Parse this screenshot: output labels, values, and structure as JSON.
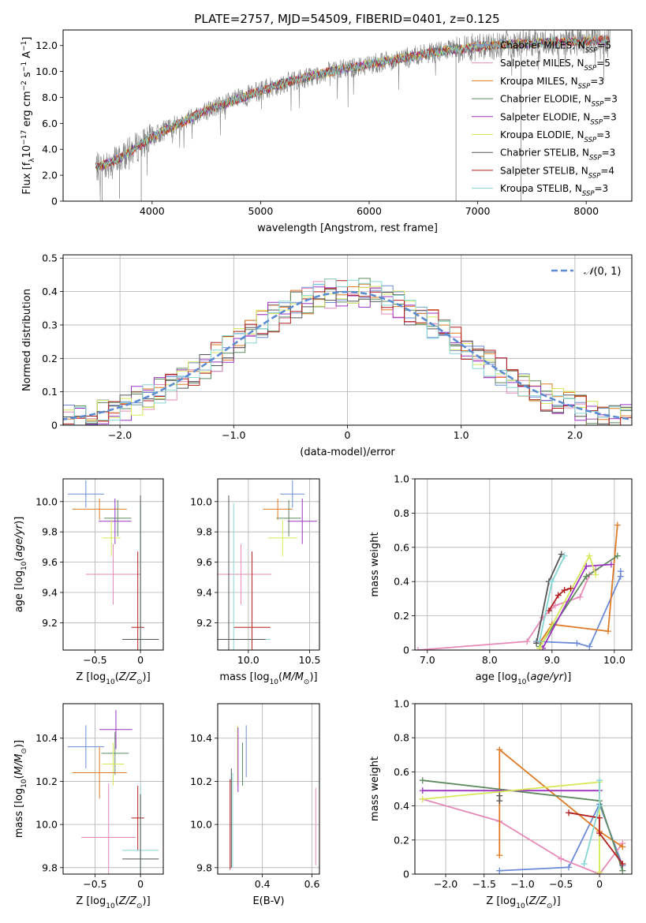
{
  "figure_title": "PLATE=2757, MJD=54509, FIBERID=0401, z=0.125",
  "model_colors": {
    "Chabrier MILES": "#6b8bd8",
    "Salpeter MILES": "#e78ab8",
    "Kroupa MILES": "#e07b27",
    "Chabrier ELODIE": "#5e8a5e",
    "Salpeter ELODIE": "#9b34c1",
    "Kroupa ELODIE": "#d8e85a",
    "Chabrier STELIB": "#555555",
    "Salpeter STELIB": "#b21f1f",
    "Kroupa STELIB": "#86d6d4"
  },
  "chart_data": [
    {
      "id": "spectrum",
      "type": "line",
      "title": "PLATE=2757, MJD=54509, FIBERID=0401, z=0.125",
      "xlabel": "wavelength [Angstrom, rest frame]",
      "ylabel": "Flux [f_λ 10^-17 erg cm^-2 s^-1 A^-1]",
      "xlim": [
        3180,
        8420
      ],
      "ylim": [
        0,
        13.2
      ],
      "xticks": [
        4000,
        5000,
        6000,
        7000,
        8000
      ],
      "yticks": [
        0,
        2,
        4,
        6,
        8,
        10,
        12
      ],
      "grid": false,
      "legend_position": "top-right",
      "data_series": {
        "name": "data",
        "color": "#808080",
        "x": [
          3500,
          3700,
          3900,
          4100,
          4300,
          4500,
          4700,
          4900,
          5100,
          5300,
          5500,
          5700,
          5900,
          6100,
          6300,
          6500,
          6700,
          6900,
          7100,
          7300,
          7500,
          7700,
          7900,
          8100,
          8200
        ],
        "y": [
          2.6,
          3.3,
          4.4,
          5.4,
          6.2,
          7.0,
          7.6,
          8.2,
          8.8,
          9.3,
          9.7,
          10.1,
          10.4,
          10.7,
          11.0,
          11.3,
          11.6,
          11.8,
          12.0,
          12.1,
          12.2,
          12.3,
          12.3,
          12.4,
          12.4
        ],
        "drops": [
          [
            3540,
            0
          ],
          [
            3700,
            0.2
          ],
          [
            3900,
            0
          ],
          [
            6800,
            0
          ],
          [
            7400,
            0
          ]
        ]
      },
      "series": [
        {
          "name": "Chabrier MILES, N_SSP=5",
          "label_main": "Chabrier MILES, N",
          "label_sub": "SSP",
          "label_tail": "=5"
        },
        {
          "name": "Salpeter MILES, N_SSP=5",
          "label_main": "Salpeter MILES, N",
          "label_sub": "SSP",
          "label_tail": "=5"
        },
        {
          "name": "Kroupa MILES, N_SSP=3",
          "label_main": "Kroupa MILES, N",
          "label_sub": "SSP",
          "label_tail": "=3"
        },
        {
          "name": "Chabrier ELODIE, N_SSP=3",
          "label_main": "Chabrier ELODIE, N",
          "label_sub": "SSP",
          "label_tail": "=3"
        },
        {
          "name": "Salpeter ELODIE, N_SSP=3",
          "label_main": "Salpeter ELODIE, N",
          "label_sub": "SSP",
          "label_tail": "=3"
        },
        {
          "name": "Kroupa ELODIE, N_SSP=3",
          "label_main": "Kroupa ELODIE, N",
          "label_sub": "SSP",
          "label_tail": "=3"
        },
        {
          "name": "Chabrier STELIB, N_SSP=3",
          "label_main": "Chabrier STELIB, N",
          "label_sub": "SSP",
          "label_tail": "=3"
        },
        {
          "name": "Salpeter STELIB, N_SSP=4",
          "label_main": "Salpeter STELIB, N",
          "label_sub": "SSP",
          "label_tail": "=4"
        },
        {
          "name": "Kroupa STELIB, N_SSP=3",
          "label_main": "Kroupa STELIB, N",
          "label_sub": "SSP",
          "label_tail": "=3"
        }
      ]
    },
    {
      "id": "residuals",
      "type": "histogram",
      "xlabel": "(data-model)/error",
      "ylabel": "Normed distribution",
      "xlim": [
        -2.5,
        2.5
      ],
      "ylim": [
        0,
        0.51
      ],
      "xticks": [
        -2,
        -1,
        0,
        1,
        2
      ],
      "yticks": [
        0.0,
        0.1,
        0.2,
        0.3,
        0.4,
        0.5
      ],
      "grid": true,
      "legend": "N(0,1)",
      "legend_position": "top-right",
      "bin_width": 0.1,
      "reference_curve": {
        "name": "N(0,1)",
        "mean": 0,
        "sigma": 1,
        "style": "dashed",
        "color": "#5b8bd0"
      }
    },
    {
      "id": "age-vs-Z",
      "type": "errorbar",
      "xlabel": "Z [log10(Z/Z☉)]",
      "ylabel": "age [log10(age/yr)]",
      "xlim": [
        -0.85,
        0.25
      ],
      "ylim": [
        9.02,
        10.15
      ],
      "xticks": [
        -0.5,
        0.0
      ],
      "yticks": [
        9.2,
        9.4,
        9.6,
        9.8,
        10.0
      ],
      "grid": true,
      "points": [
        {
          "model": "Chabrier MILES",
          "x": -0.6,
          "xerr": 0.2,
          "y": 10.05,
          "yerr": 0.09
        },
        {
          "model": "Kroupa MILES",
          "x": -0.45,
          "xerr": 0.3,
          "y": 9.95,
          "yerr": 0.07
        },
        {
          "model": "Chabrier ELODIE",
          "x": -0.25,
          "xerr": 0.15,
          "y": 9.89,
          "yerr": 0.12
        },
        {
          "model": "Salpeter ELODIE",
          "x": -0.28,
          "xerr": 0.18,
          "y": 9.87,
          "yerr": 0.15
        },
        {
          "model": "Kroupa ELODIE",
          "x": -0.32,
          "xerr": 0.1,
          "y": 9.76,
          "yerr": 0.12
        },
        {
          "model": "Salpeter MILES",
          "x": -0.3,
          "xerr": 0.3,
          "y": 9.52,
          "yerr": 0.2
        },
        {
          "model": "Salpeter STELIB",
          "x": -0.03,
          "xerr": 0.07,
          "y": 9.17,
          "yerr": 0.5
        },
        {
          "model": "Kroupa STELIB",
          "x": 0.0,
          "xerr": 0.2,
          "y": 9.09,
          "yerr": 0.9
        },
        {
          "model": "Chabrier STELIB",
          "x": 0.0,
          "xerr": 0.2,
          "y": 9.09,
          "yerr": 0.95
        }
      ]
    },
    {
      "id": "age-vs-mass",
      "type": "errorbar",
      "xlabel": "mass [log10(M/M☉)]",
      "ylabel": "",
      "xlim": [
        9.75,
        10.58
      ],
      "ylim": [
        9.02,
        10.15
      ],
      "xticks": [
        10.0,
        10.5
      ],
      "yticks": [
        9.2,
        9.4,
        9.6,
        9.8,
        10.0
      ],
      "grid": true,
      "points": [
        {
          "model": "Chabrier MILES",
          "x": 10.36,
          "xerr": 0.1,
          "y": 10.05,
          "yerr": 0.09
        },
        {
          "model": "Kroupa MILES",
          "x": 10.24,
          "xerr": 0.12,
          "y": 9.95,
          "yerr": 0.07
        },
        {
          "model": "Chabrier ELODIE",
          "x": 10.33,
          "xerr": 0.1,
          "y": 9.89,
          "yerr": 0.12
        },
        {
          "model": "Salpeter ELODIE",
          "x": 10.44,
          "xerr": 0.12,
          "y": 9.87,
          "yerr": 0.15
        },
        {
          "model": "Kroupa ELODIE",
          "x": 10.28,
          "xerr": 0.12,
          "y": 9.76,
          "yerr": 0.12
        },
        {
          "model": "Salpeter MILES",
          "x": 9.94,
          "xerr": 0.25,
          "y": 9.52,
          "yerr": 0.2
        },
        {
          "model": "Salpeter STELIB",
          "x": 10.03,
          "xerr": 0.15,
          "y": 9.17,
          "yerr": 0.5
        },
        {
          "model": "Kroupa STELIB",
          "x": 9.88,
          "xerr": 0.3,
          "y": 9.09,
          "yerr": 0.9
        },
        {
          "model": "Chabrier STELIB",
          "x": 9.84,
          "xerr": 0.3,
          "y": 9.09,
          "yerr": 0.95
        }
      ]
    },
    {
      "id": "mass-weight-vs-age",
      "type": "line",
      "xlabel": "age [log10(age/yr)]",
      "ylabel": "mass weight",
      "xlim": [
        6.8,
        10.28
      ],
      "ylim": [
        0,
        1.0
      ],
      "xticks": [
        7,
        8,
        9,
        10
      ],
      "yticks": [
        0.0,
        0.2,
        0.4,
        0.6,
        0.8,
        1.0
      ],
      "grid": true,
      "series": [
        {
          "model": "Salpeter MILES",
          "x": [
            6.85,
            8.6,
            8.85,
            9.05,
            9.45,
            9.6,
            9.7
          ],
          "y": [
            0.0,
            0.05,
            0.19,
            0.26,
            0.31,
            0.44,
            0.47
          ]
        },
        {
          "model": "Chabrier MILES",
          "x": [
            8.75,
            9.4,
            9.6,
            10.1,
            10.1
          ],
          "y": [
            0.05,
            0.04,
            0.02,
            0.43,
            0.46
          ]
        },
        {
          "model": "Kroupa MILES",
          "x": [
            8.8,
            9.0,
            9.9,
            10.05
          ],
          "y": [
            0.04,
            0.15,
            0.11,
            0.73
          ]
        },
        {
          "model": "Chabrier ELODIE",
          "x": [
            8.8,
            9.55,
            10.05
          ],
          "y": [
            0.02,
            0.43,
            0.55
          ]
        },
        {
          "model": "Salpeter ELODIE",
          "x": [
            8.85,
            9.55,
            9.95
          ],
          "y": [
            0.01,
            0.49,
            0.5
          ]
        },
        {
          "model": "Kroupa ELODIE",
          "x": [
            8.8,
            9.6,
            9.7
          ],
          "y": [
            0.01,
            0.55,
            0.44
          ]
        },
        {
          "model": "Chabrier STELIB",
          "x": [
            8.75,
            8.95,
            9.15
          ],
          "y": [
            0.04,
            0.4,
            0.56
          ]
        },
        {
          "model": "Salpeter STELIB",
          "x": [
            8.95,
            9.1,
            9.2,
            9.3
          ],
          "y": [
            0.23,
            0.32,
            0.35,
            0.36
          ]
        },
        {
          "model": "Kroupa STELIB",
          "x": [
            8.8,
            9.0,
            9.2
          ],
          "y": [
            0.05,
            0.4,
            0.55
          ]
        }
      ]
    },
    {
      "id": "mass-vs-Z",
      "type": "errorbar",
      "xlabel": "Z [log10(Z/Z☉)]",
      "ylabel": "mass [log10(M/M☉)]",
      "xlim": [
        -0.85,
        0.25
      ],
      "ylim": [
        9.77,
        10.56
      ],
      "xticks": [
        -0.5,
        0.0
      ],
      "yticks": [
        9.8,
        10.0,
        10.2,
        10.4
      ],
      "grid": true,
      "points": [
        {
          "model": "Chabrier MILES",
          "x": -0.6,
          "xerr": 0.2,
          "y": 10.36,
          "yerr": 0.1
        },
        {
          "model": "Salpeter ELODIE",
          "x": -0.27,
          "xerr": 0.18,
          "y": 10.44,
          "yerr": 0.09
        },
        {
          "model": "Chabrier ELODIE",
          "x": -0.28,
          "xerr": 0.15,
          "y": 10.33,
          "yerr": 0.1
        },
        {
          "model": "Kroupa ELODIE",
          "x": -0.3,
          "xerr": 0.12,
          "y": 10.28,
          "yerr": 0.1
        },
        {
          "model": "Kroupa MILES",
          "x": -0.45,
          "xerr": 0.3,
          "y": 10.24,
          "yerr": 0.12
        },
        {
          "model": "Salpeter STELIB",
          "x": -0.03,
          "xerr": 0.07,
          "y": 10.03,
          "yerr": 0.15
        },
        {
          "model": "Salpeter MILES",
          "x": -0.35,
          "xerr": 0.3,
          "y": 9.94,
          "yerr": 0.25
        },
        {
          "model": "Kroupa STELIB",
          "x": 0.0,
          "xerr": 0.2,
          "y": 9.88,
          "yerr": 0.3
        },
        {
          "model": "Chabrier STELIB",
          "x": 0.0,
          "xerr": 0.2,
          "y": 9.84,
          "yerr": 0.3
        }
      ]
    },
    {
      "id": "mass-vs-EBV",
      "type": "errorbar",
      "xlabel": "E(B-V)",
      "ylabel": "",
      "xlim": [
        0.22,
        0.63
      ],
      "ylim": [
        9.77,
        10.56
      ],
      "xticks": [
        0.4,
        0.6
      ],
      "yticks": [
        9.8,
        10.0,
        10.2,
        10.4
      ],
      "grid": true,
      "points": [
        {
          "model": "Salpeter STELIB",
          "x": 0.27,
          "xerr": 0.0,
          "y": 10.0,
          "yerr": 0.21
        },
        {
          "model": "Chabrier STELIB",
          "x": 0.275,
          "xerr": 0.0,
          "y": 10.03,
          "yerr": 0.23
        },
        {
          "model": "Kroupa STELIB",
          "x": 0.28,
          "xerr": 0.0,
          "y": 10.02,
          "yerr": 0.22
        },
        {
          "model": "Kroupa ELODIE",
          "x": 0.3,
          "xerr": 0.0,
          "y": 10.32,
          "yerr": 0.14
        },
        {
          "model": "Salpeter ELODIE",
          "x": 0.302,
          "xerr": 0.0,
          "y": 10.3,
          "yerr": 0.15
        },
        {
          "model": "Chabrier ELODIE",
          "x": 0.32,
          "xerr": 0.0,
          "y": 10.28,
          "yerr": 0.1
        },
        {
          "model": "Chabrier MILES",
          "x": 0.335,
          "xerr": 0.0,
          "y": 10.34,
          "yerr": 0.12
        },
        {
          "model": "Salpeter MILES",
          "x": 0.615,
          "xerr": 0.0,
          "y": 9.99,
          "yerr": 0.18
        }
      ]
    },
    {
      "id": "mass-weight-vs-Z",
      "type": "line",
      "xlabel": "Z [log10(Z/Z☉)]",
      "ylabel": "mass weight",
      "xlim": [
        -2.4,
        0.42
      ],
      "ylim": [
        0,
        1.0
      ],
      "xticks": [
        -2.0,
        -1.5,
        -1.0,
        -0.5,
        0.0
      ],
      "yticks": [
        0.0,
        0.2,
        0.4,
        0.6,
        0.8,
        1.0
      ],
      "grid": true,
      "series": [
        {
          "model": "Chabrier MILES",
          "x": [
            -1.3,
            -0.4,
            0.0,
            0.3
          ],
          "y": [
            0.02,
            0.04,
            0.41,
            0.05
          ]
        },
        {
          "model": "Salpeter MILES",
          "x": [
            -2.3,
            -1.3,
            -0.5,
            0.0,
            0.3
          ],
          "y": [
            0.44,
            0.31,
            0.09,
            0.0,
            0.18
          ]
        },
        {
          "model": "Kroupa MILES",
          "x": [
            -1.3,
            -1.3,
            0.0,
            0.3
          ],
          "y": [
            0.11,
            0.73,
            0.25,
            0.16
          ]
        },
        {
          "model": "Chabrier ELODIE",
          "x": [
            -2.3,
            0.0,
            0.3
          ],
          "y": [
            0.55,
            0.43,
            0.02
          ]
        },
        {
          "model": "Salpeter ELODIE",
          "x": [
            -2.3,
            0.0
          ],
          "y": [
            0.49,
            0.49
          ]
        },
        {
          "model": "Kroupa ELODIE",
          "x": [
            -2.3,
            0.0,
            0.0
          ],
          "y": [
            0.44,
            0.54,
            0.01
          ]
        },
        {
          "model": "Chabrier STELIB",
          "x": [
            -1.3,
            -1.3
          ],
          "y": [
            0.43,
            0.46
          ]
        },
        {
          "model": "Salpeter STELIB",
          "x": [
            -0.4,
            0.0,
            0.0,
            0.3
          ],
          "y": [
            0.36,
            0.33,
            0.24,
            0.06
          ]
        },
        {
          "model": "Kroupa STELIB",
          "x": [
            -0.2,
            0.0,
            0.0
          ],
          "y": [
            0.06,
            0.4,
            0.55
          ]
        }
      ]
    }
  ]
}
